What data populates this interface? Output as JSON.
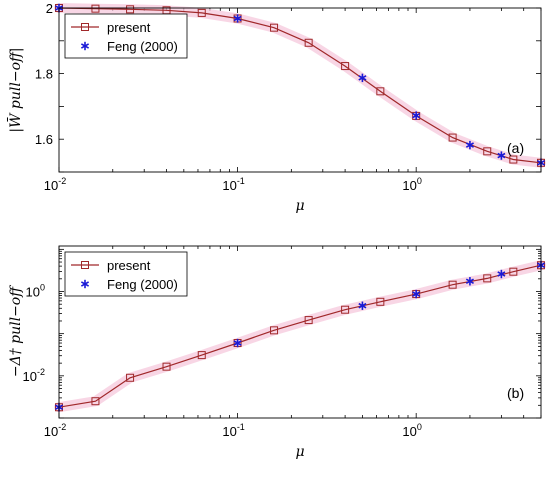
{
  "chart_data": [
    {
      "type": "line",
      "panel_label": "(a)",
      "xlabel": "μ",
      "ylabel": "|W̄ pull−off|",
      "xscale": "log",
      "yscale": "linear",
      "xlim": [
        0.01,
        5
      ],
      "ylim": [
        1.5,
        2.0
      ],
      "xticks": [
        {
          "value": 0.01,
          "base": "10",
          "exp": "-2"
        },
        {
          "value": 0.1,
          "base": "10",
          "exp": "-1"
        },
        {
          "value": 1,
          "base": "10",
          "exp": "0"
        }
      ],
      "yticks": [
        {
          "value": 1.6,
          "label": "1.6"
        },
        {
          "value": 1.8,
          "label": "1.8"
        },
        {
          "value": 2.0,
          "label": "2"
        }
      ],
      "legend_position": "top-left",
      "series": [
        {
          "name": "present",
          "color": "#a0282a",
          "marker": "square",
          "x": [
            0.01,
            0.016,
            0.025,
            0.04,
            0.063,
            0.1,
            0.16,
            0.25,
            0.4,
            0.63,
            1.0,
            1.6,
            2.5,
            3.5,
            5.0
          ],
          "y": [
            2.0,
            1.998,
            1.996,
            1.993,
            1.985,
            1.968,
            1.94,
            1.894,
            1.823,
            1.746,
            1.671,
            1.605,
            1.563,
            1.538,
            1.528
          ]
        },
        {
          "name": "Feng (2000)",
          "color": "#1a1ad6",
          "marker": "asterisk",
          "x": [
            0.01,
            0.1,
            0.5,
            1.0,
            2.0,
            3.0,
            5.0
          ],
          "y": [
            2.0,
            1.968,
            1.787,
            1.672,
            1.582,
            1.55,
            1.528
          ]
        }
      ]
    },
    {
      "type": "line",
      "panel_label": "(b)",
      "xlabel": "μ",
      "ylabel": "−Δ† pull−off",
      "xscale": "log",
      "yscale": "log",
      "xlim": [
        0.01,
        5
      ],
      "ylim": [
        0.001,
        12
      ],
      "xticks": [
        {
          "value": 0.01,
          "base": "10",
          "exp": "-2"
        },
        {
          "value": 0.1,
          "base": "10",
          "exp": "-1"
        },
        {
          "value": 1,
          "base": "10",
          "exp": "0"
        }
      ],
      "yticks": [
        {
          "value": 0.01,
          "base": "10",
          "exp": "-2"
        },
        {
          "value": 1,
          "base": "10",
          "exp": "0"
        }
      ],
      "legend_position": "top-left",
      "series": [
        {
          "name": "present",
          "color": "#a0282a",
          "marker": "square",
          "x": [
            0.01,
            0.016,
            0.025,
            0.04,
            0.063,
            0.1,
            0.16,
            0.25,
            0.4,
            0.63,
            1.0,
            1.6,
            2.5,
            3.5,
            5.0
          ],
          "y": [
            0.0018,
            0.0025,
            0.009,
            0.0165,
            0.031,
            0.06,
            0.12,
            0.21,
            0.37,
            0.57,
            0.87,
            1.45,
            2.05,
            2.95,
            4.2
          ]
        },
        {
          "name": "Feng (2000)",
          "color": "#1a1ad6",
          "marker": "asterisk",
          "x": [
            0.01,
            0.1,
            0.5,
            1.0,
            2.0,
            3.0,
            5.0
          ],
          "y": [
            0.0018,
            0.06,
            0.46,
            0.87,
            1.75,
            2.6,
            4.2
          ]
        }
      ]
    }
  ]
}
